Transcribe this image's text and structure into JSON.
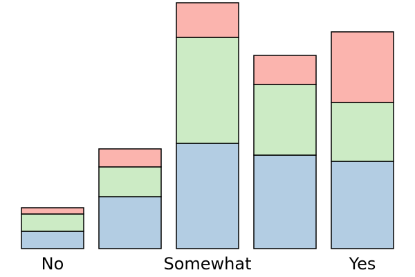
{
  "chart_data": {
    "type": "stacked-bar",
    "categories": [
      "No",
      null,
      "Somewhat",
      null,
      "Yes"
    ],
    "series": [
      {
        "color": "#b3cde3",
        "values": [
          25,
          75,
          152,
          135,
          126
        ]
      },
      {
        "color": "#ccebc5",
        "values": [
          25,
          43,
          153,
          102,
          85
        ]
      },
      {
        "color": "#fbb4ae",
        "values": [
          9,
          26,
          50,
          42,
          102
        ]
      }
    ],
    "ylim": [
      0,
      360
    ]
  }
}
